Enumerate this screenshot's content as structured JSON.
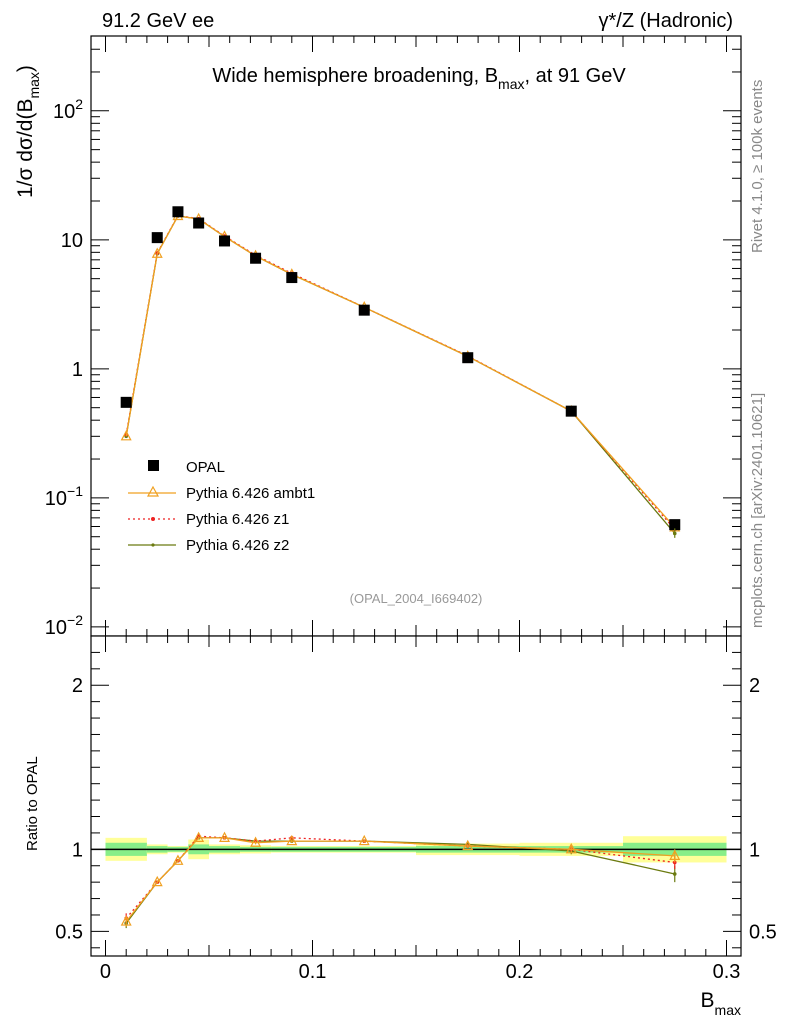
{
  "header": {
    "left": "91.2 GeV ee",
    "right": "γ*/Z (Hadronic)"
  },
  "side_labels": {
    "rivet": "Rivet 4.1.0, ≥ 100k events",
    "source": "mcplots.cern.ch [arXiv:2401.10621]"
  },
  "chart_data": {
    "type": "scatter",
    "title_main": "Wide hemisphere broadening, B",
    "title_sub": "max",
    "title_tail": ", at 91 GeV",
    "analysis_tag": "(OPAL_2004_I669402)",
    "xlabel_main": "B",
    "xlabel_sub": "max",
    "ylabel_main": "1/σ  dσ/d(B",
    "ylabel_sub": "max",
    "ylabel_tail": ")",
    "ratio_ylabel": "Ratio to OPAL",
    "xlim": [
      -0.007,
      0.307
    ],
    "ylim_log": [
      0.0085,
      380
    ],
    "ratio_ylim": [
      0.35,
      2.3
    ],
    "x_ticks": [
      {
        "v": 0,
        "label": "0"
      },
      {
        "v": 0.1,
        "label": "0.1"
      },
      {
        "v": 0.2,
        "label": "0.2"
      },
      {
        "v": 0.3,
        "label": "0.3"
      }
    ],
    "y_ticks": [
      {
        "v": 100,
        "label": "10",
        "sup": "2"
      },
      {
        "v": 10,
        "label": "10",
        "sup": ""
      },
      {
        "v": 1,
        "label": "1",
        "sup": ""
      },
      {
        "v": 0.1,
        "label": "10",
        "sup": "−1"
      },
      {
        "v": 0.01,
        "label": "10",
        "sup": "−2"
      }
    ],
    "ratio_ticks": [
      {
        "v": 0.5,
        "label": "0.5"
      },
      {
        "v": 1,
        "label": "1"
      },
      {
        "v": 2,
        "label": "2"
      }
    ],
    "bins": [
      {
        "lo": 0.0,
        "hi": 0.02
      },
      {
        "lo": 0.02,
        "hi": 0.03
      },
      {
        "lo": 0.03,
        "hi": 0.04
      },
      {
        "lo": 0.04,
        "hi": 0.05
      },
      {
        "lo": 0.05,
        "hi": 0.065
      },
      {
        "lo": 0.065,
        "hi": 0.08
      },
      {
        "lo": 0.08,
        "hi": 0.1
      },
      {
        "lo": 0.1,
        "hi": 0.15
      },
      {
        "lo": 0.15,
        "hi": 0.2
      },
      {
        "lo": 0.2,
        "hi": 0.25
      },
      {
        "lo": 0.25,
        "hi": 0.3
      }
    ],
    "x": [
      0.01,
      0.025,
      0.035,
      0.045,
      0.0575,
      0.0725,
      0.09,
      0.125,
      0.175,
      0.225,
      0.275
    ],
    "data": {
      "name": "OPAL",
      "values": [
        0.55,
        10.4,
        16.5,
        13.5,
        9.8,
        7.2,
        5.1,
        2.85,
        1.22,
        0.47,
        0.062
      ],
      "band_stat": [
        0.04,
        0.02,
        0.015,
        0.03,
        0.02,
        0.015,
        0.015,
        0.015,
        0.02,
        0.02,
        0.04
      ],
      "band_total": [
        0.07,
        0.03,
        0.02,
        0.06,
        0.03,
        0.025,
        0.02,
        0.02,
        0.035,
        0.04,
        0.08
      ]
    },
    "series": [
      {
        "name": "Pythia 6.426 ambt1",
        "color": "#f0a020",
        "marker": "triangle",
        "values": [
          0.3,
          7.8,
          15.3,
          14.5,
          10.6,
          7.5,
          5.4,
          3.0,
          1.25,
          0.47,
          0.059
        ],
        "ratio": [
          0.56,
          0.8,
          0.93,
          1.07,
          1.07,
          1.04,
          1.05,
          1.05,
          1.02,
          1.0,
          0.96
        ],
        "ratio_err": [
          0.03,
          0.01,
          0.01,
          0.01,
          0.01,
          0.01,
          0.01,
          0.01,
          0.01,
          0.02,
          0.04
        ]
      },
      {
        "name": "Pythia 6.426 z1",
        "color": "#ee2222",
        "marker": "dot",
        "values": [
          0.31,
          7.9,
          15.4,
          14.6,
          10.7,
          7.6,
          5.5,
          3.0,
          1.26,
          0.47,
          0.057
        ],
        "ratio": [
          0.58,
          0.8,
          0.93,
          1.08,
          1.07,
          1.05,
          1.07,
          1.05,
          1.02,
          1.0,
          0.92
        ],
        "ratio_err": [
          0.03,
          0.01,
          0.01,
          0.01,
          0.01,
          0.01,
          0.01,
          0.01,
          0.01,
          0.02,
          0.04
        ]
      },
      {
        "name": "Pythia 6.426 z2",
        "color": "#6b7a10",
        "marker": "dot",
        "values": [
          0.3,
          7.8,
          15.3,
          14.5,
          10.6,
          7.5,
          5.4,
          3.0,
          1.25,
          0.47,
          0.053
        ],
        "ratio": [
          0.55,
          0.8,
          0.93,
          1.07,
          1.07,
          1.05,
          1.05,
          1.05,
          1.03,
          0.99,
          0.85
        ],
        "ratio_err": [
          0.03,
          0.01,
          0.01,
          0.01,
          0.01,
          0.01,
          0.01,
          0.01,
          0.01,
          0.02,
          0.05
        ]
      }
    ],
    "colors": {
      "band_total": "#ffff99",
      "band_stat": "#88ee88"
    }
  }
}
